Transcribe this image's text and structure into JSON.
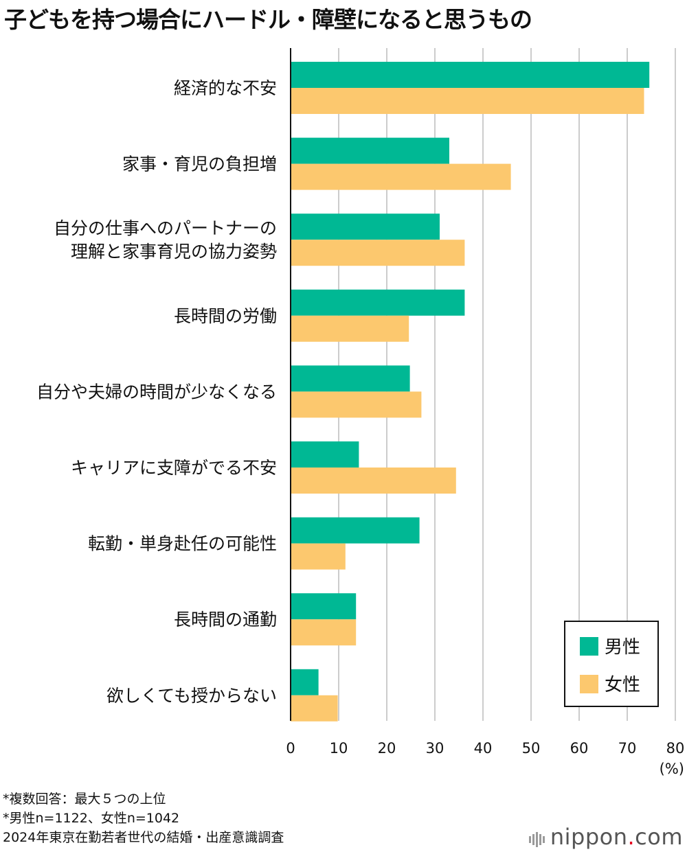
{
  "title": "子どもを持つ場合にハードル・障壁になると思うもの",
  "colors": {
    "male": "#00b894",
    "female": "#fcc86e",
    "grid": "#cccccc",
    "axis": "#111111"
  },
  "chart_data": {
    "type": "bar",
    "orientation": "horizontal",
    "categories": [
      [
        "経済的な不安"
      ],
      [
        "家事・育児の負担増"
      ],
      [
        "自分の仕事へのパートナーの",
        "理解と家事育児の協力姿勢"
      ],
      [
        "長時間の労働"
      ],
      [
        "自分や夫婦の時間が少なくなる"
      ],
      [
        "キャリアに支障がでる不安"
      ],
      [
        "転勤・単身赴任の可能性"
      ],
      [
        "長時間の通勤"
      ],
      [
        "欲しくても授からない"
      ]
    ],
    "series": [
      {
        "name": "男性",
        "values": [
          74.6,
          33.0,
          31.0,
          36.2,
          24.8,
          14.2,
          26.8,
          13.6,
          5.8
        ]
      },
      {
        "name": "女性",
        "values": [
          73.5,
          45.8,
          36.2,
          24.6,
          27.2,
          34.4,
          11.4,
          13.6,
          9.8
        ]
      }
    ],
    "xlim": [
      0,
      80
    ],
    "xticks": [
      "0",
      "10",
      "20",
      "30",
      "40",
      "50",
      "60",
      "70",
      "80"
    ],
    "unit": "(%)",
    "grid": true,
    "legend_position": "bottom-right"
  },
  "notes": [
    "*複数回答：最大５つの上位",
    "*男性n=1122、女性n=1042",
    "2024年東京在勤若者世代の結婚・出産意識調査"
  ],
  "brand": {
    "name": "nippon",
    "dot": ".",
    "suffix": "com"
  }
}
